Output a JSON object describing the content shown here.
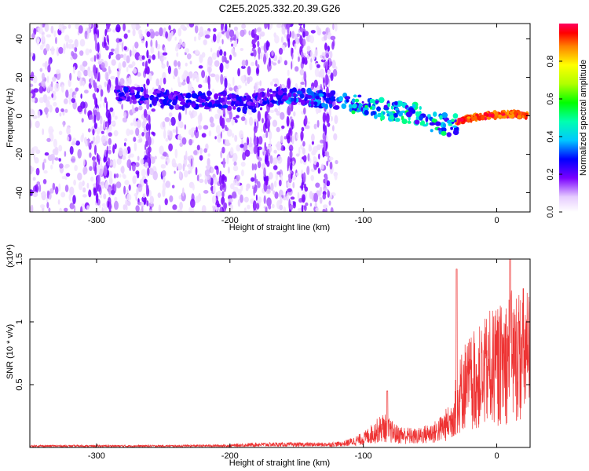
{
  "chart_data": [
    {
      "type": "heatmap",
      "title": "C2E5.2025.332.20.39.G26",
      "xlabel": "Height of straight line (km)",
      "ylabel": "Frequency (Hz)",
      "xlim": [
        -350,
        25
      ],
      "ylim": [
        -50,
        48
      ],
      "xticks": [
        -300,
        -200,
        -100,
        0
      ],
      "yticks": [
        -40,
        -20,
        0,
        20,
        40
      ],
      "colorbar": {
        "label": "Normalized spectral amplitude",
        "range": [
          0.0,
          1.0
        ],
        "ticks": [
          0.0,
          0.2,
          0.4,
          0.6,
          0.8
        ]
      },
      "noise_region": {
        "x": [
          -350,
          -120
        ],
        "y": [
          -50,
          48
        ]
      },
      "ridge": [
        {
          "x": -280,
          "y": 12
        },
        {
          "x": -260,
          "y": 9
        },
        {
          "x": -235,
          "y": 8
        },
        {
          "x": -205,
          "y": 8
        },
        {
          "x": -185,
          "y": 6
        },
        {
          "x": -160,
          "y": 11
        },
        {
          "x": -140,
          "y": 9
        },
        {
          "x": -120,
          "y": 8
        },
        {
          "x": -100,
          "y": 5
        },
        {
          "x": -80,
          "y": 3
        },
        {
          "x": -60,
          "y": 1
        },
        {
          "x": -45,
          "y": -4
        },
        {
          "x": -35,
          "y": -5
        },
        {
          "x": -25,
          "y": -2
        },
        {
          "x": -10,
          "y": 0
        },
        {
          "x": 10,
          "y": 1
        },
        {
          "x": 25,
          "y": 0
        }
      ]
    },
    {
      "type": "line",
      "xlabel": "Height of straight line (km)",
      "ylabel": "SNR (10 * v/v)",
      "yscale_label": "(x10⁴)",
      "xlim": [
        -350,
        25
      ],
      "ylim": [
        0,
        1.5
      ],
      "xticks": [
        -300,
        -200,
        -100,
        0
      ],
      "yticks": [
        0.5,
        1.0,
        1.5
      ],
      "color": "#ee3333",
      "envelope": [
        {
          "x": -350,
          "y": 0.02
        },
        {
          "x": -250,
          "y": 0.02
        },
        {
          "x": -200,
          "y": 0.025
        },
        {
          "x": -180,
          "y": 0.04
        },
        {
          "x": -130,
          "y": 0.04
        },
        {
          "x": -115,
          "y": 0.05
        },
        {
          "x": -100,
          "y": 0.12
        },
        {
          "x": -85,
          "y": 0.28
        },
        {
          "x": -75,
          "y": 0.18
        },
        {
          "x": -60,
          "y": 0.15
        },
        {
          "x": -45,
          "y": 0.22
        },
        {
          "x": -35,
          "y": 0.35
        },
        {
          "x": -25,
          "y": 0.85
        },
        {
          "x": -20,
          "y": 0.9
        },
        {
          "x": -10,
          "y": 1.0
        },
        {
          "x": -5,
          "y": 1.1
        },
        {
          "x": 0,
          "y": 1.1
        },
        {
          "x": 10,
          "y": 1.25
        },
        {
          "x": 20,
          "y": 1.3
        },
        {
          "x": 25,
          "y": 1.25
        }
      ],
      "spikes": [
        {
          "x": -82,
          "y": 0.45
        },
        {
          "x": -30,
          "y": 1.42
        },
        {
          "x": 10,
          "y": 1.5
        }
      ]
    }
  ]
}
